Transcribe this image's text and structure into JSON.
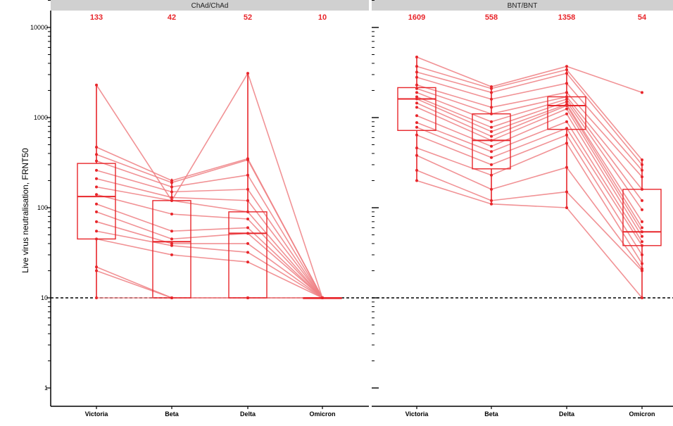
{
  "colors": {
    "accent": "#e8262b",
    "line": "#ee7f83",
    "strip": "#d0d0d0",
    "axis": "#000000"
  },
  "chart_data": {
    "type": "box",
    "ylabel": "Live virus neutralisation, FRNT50",
    "y_scale": "log",
    "ylim": [
      0.7,
      21000
    ],
    "ytick_values": [
      1,
      10,
      100,
      1000,
      10000
    ],
    "ytick_labels": [
      "1",
      "10",
      "100",
      "1000",
      "10000"
    ],
    "reference_line": 10,
    "categories": [
      "Victoria",
      "Beta",
      "Delta",
      "Omicron"
    ],
    "panels": [
      {
        "strip": "ChAd/ChAd",
        "medians": [
          133,
          42,
          52,
          10
        ],
        "median_labels": [
          "133",
          "42",
          "52",
          "10"
        ],
        "boxes": [
          {
            "q1": 45,
            "median": 133,
            "q3": 310,
            "whisker_lo": 10,
            "whisker_hi": 2300
          },
          {
            "q1": 10,
            "median": 42,
            "q3": 120,
            "whisker_lo": 10,
            "whisker_hi": 210
          },
          {
            "q1": 10,
            "median": 52,
            "q3": 90,
            "whisker_lo": 10,
            "whisker_hi": 3100
          },
          {
            "q1": 10,
            "median": 10,
            "q3": 10,
            "whisker_lo": 10,
            "whisker_hi": 10
          }
        ],
        "participants": [
          [
            2300,
            120,
            3100,
            10
          ],
          [
            470,
            200,
            350,
            10
          ],
          [
            390,
            190,
            340,
            10
          ],
          [
            330,
            170,
            230,
            10
          ],
          [
            260,
            150,
            160,
            10
          ],
          [
            210,
            130,
            120,
            10
          ],
          [
            170,
            120,
            90,
            10
          ],
          [
            140,
            85,
            75,
            10
          ],
          [
            110,
            55,
            60,
            10
          ],
          [
            90,
            45,
            52,
            10
          ],
          [
            70,
            40,
            40,
            10
          ],
          [
            55,
            38,
            32,
            10
          ],
          [
            45,
            30,
            25,
            10
          ],
          [
            22,
            10,
            10,
            10
          ],
          [
            20,
            10,
            10,
            10
          ],
          [
            10,
            10,
            10,
            10
          ]
        ]
      },
      {
        "strip": "BNT/BNT",
        "medians": [
          1609,
          558,
          1358,
          54
        ],
        "median_labels": [
          "1609",
          "558",
          "1358",
          "54"
        ],
        "boxes": [
          {
            "q1": 720,
            "median": 1609,
            "q3": 2150,
            "whisker_lo": 200,
            "whisker_hi": 4700
          },
          {
            "q1": 270,
            "median": 558,
            "q3": 1100,
            "whisker_lo": 110,
            "whisker_hi": 2200
          },
          {
            "q1": 740,
            "median": 1358,
            "q3": 1700,
            "whisker_lo": 100,
            "whisker_hi": 3700
          },
          {
            "q1": 38,
            "median": 54,
            "q3": 160,
            "whisker_lo": 10,
            "whisker_hi": 340
          }
        ],
        "participants": [
          [
            4700,
            2200,
            3700,
            1900
          ],
          [
            3700,
            2100,
            3400,
            340
          ],
          [
            3200,
            1900,
            3100,
            300
          ],
          [
            2800,
            1600,
            2400,
            260
          ],
          [
            2300,
            1300,
            1900,
            220
          ],
          [
            2100,
            1100,
            1700,
            160
          ],
          [
            1900,
            900,
            1600,
            120
          ],
          [
            1700,
            780,
            1500,
            95
          ],
          [
            1609,
            700,
            1400,
            70
          ],
          [
            1450,
            620,
            1358,
            60
          ],
          [
            1300,
            558,
            1250,
            54
          ],
          [
            1050,
            480,
            1100,
            48
          ],
          [
            880,
            420,
            900,
            42
          ],
          [
            780,
            360,
            760,
            38
          ],
          [
            640,
            300,
            640,
            30
          ],
          [
            460,
            230,
            520,
            24
          ],
          [
            380,
            160,
            280,
            21
          ],
          [
            260,
            120,
            150,
            20
          ],
          [
            200,
            110,
            100,
            10
          ]
        ]
      }
    ]
  }
}
